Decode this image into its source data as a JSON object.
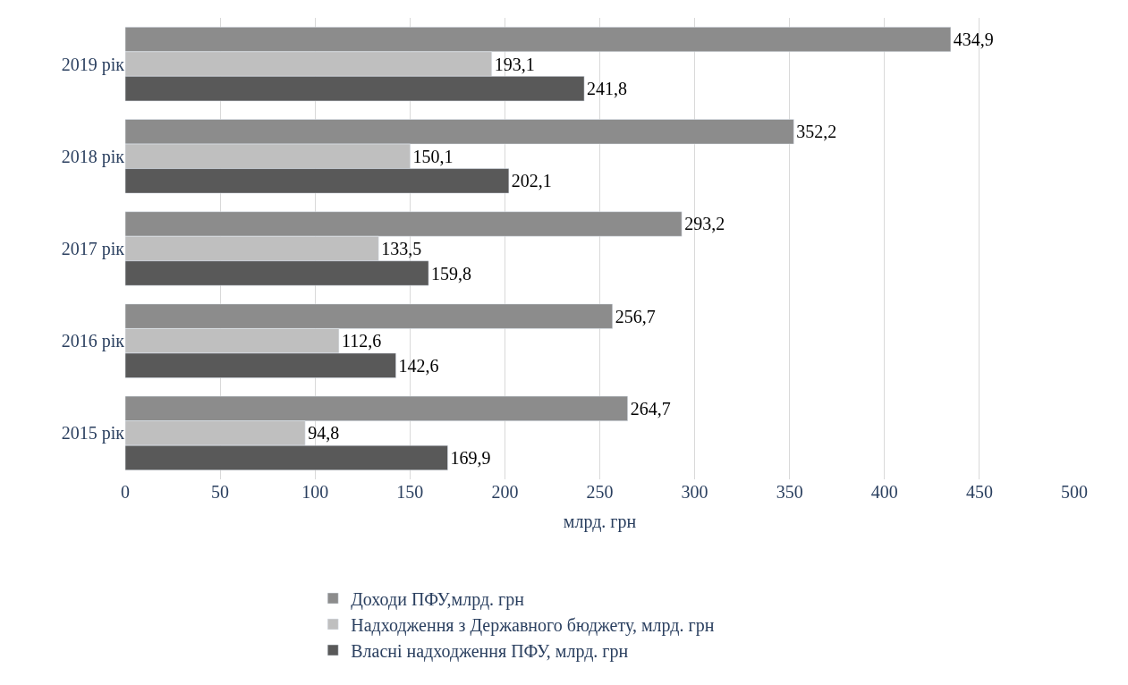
{
  "chart_data": {
    "type": "bar",
    "orientation": "horizontal",
    "xlabel": "млрд. грн",
    "categories": [
      "2019 рік",
      "2018 рік",
      "2017 рік",
      "2016 рік",
      "2015 рік"
    ],
    "series": [
      {
        "name": "Доходи ПФУ,млрд. грн",
        "color": "#8c8c8c",
        "values": [
          434.9,
          352.2,
          293.2,
          256.7,
          264.7
        ],
        "value_labels": [
          "434,9",
          "352,2",
          "293,2",
          "256,7",
          "264,7"
        ]
      },
      {
        "name": "Надходження з Державного бюджету, млрд. грн",
        "color": "#bfbfbf",
        "values": [
          193.1,
          150.1,
          133.5,
          112.6,
          94.8
        ],
        "value_labels": [
          "193,1",
          "150,1",
          "133,5",
          "112,6",
          "94,8"
        ]
      },
      {
        "name": "Власні надходження ПФУ, млрд. грн",
        "color": "#595959",
        "values": [
          241.8,
          202.1,
          159.8,
          142.6,
          169.9
        ],
        "value_labels": [
          "241,8",
          "202,1",
          "159,8",
          "142,6",
          "169,9"
        ]
      }
    ],
    "xlim": [
      0,
      500
    ],
    "xticks": [
      0,
      50,
      100,
      150,
      200,
      250,
      300,
      350,
      400,
      450,
      500
    ],
    "grid": "x",
    "legend": "bottom"
  }
}
